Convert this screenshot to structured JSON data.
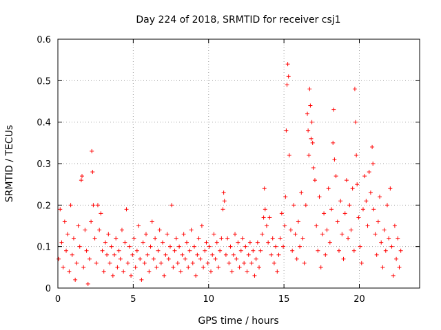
{
  "chart_data": {
    "type": "scatter",
    "title": "Day 224 of 2018, SRMTID for receiver csj1",
    "xlabel": "GPS time / hours",
    "ylabel": "SRMTID / TECUs",
    "xlim": [
      0,
      24
    ],
    "ylim": [
      0,
      0.6
    ],
    "x_ticks": [
      0,
      5,
      10,
      15,
      20
    ],
    "y_ticks": [
      0,
      0.1,
      0.2,
      0.3,
      0.4,
      0.5,
      0.6
    ],
    "x_tick_labels": [
      "0",
      "5",
      "10",
      "15",
      "20"
    ],
    "y_tick_labels": [
      "0",
      "0.1",
      "0.2",
      "0.3",
      "0.4",
      "0.5",
      "0.6"
    ],
    "grid": true,
    "marker": "+",
    "series_color": "#ff0000",
    "series": [
      {
        "name": "SRMTID",
        "points": [
          [
            0.05,
            0.07
          ],
          [
            0.15,
            0.19
          ],
          [
            0.25,
            0.11
          ],
          [
            0.35,
            0.05
          ],
          [
            0.45,
            0.16
          ],
          [
            0.55,
            0.09
          ],
          [
            0.65,
            0.13
          ],
          [
            0.75,
            0.04
          ],
          [
            0.85,
            0.2
          ],
          [
            0.95,
            0.08
          ],
          [
            1.05,
            0.12
          ],
          [
            1.15,
            0.02
          ],
          [
            1.25,
            0.06
          ],
          [
            1.35,
            0.15
          ],
          [
            1.45,
            0.1
          ],
          [
            1.55,
            0.26
          ],
          [
            1.6,
            0.27
          ],
          [
            1.7,
            0.05
          ],
          [
            1.8,
            0.14
          ],
          [
            1.9,
            0.09
          ],
          [
            2.0,
            0.01
          ],
          [
            2.1,
            0.07
          ],
          [
            2.2,
            0.16
          ],
          [
            2.25,
            0.33
          ],
          [
            2.3,
            0.28
          ],
          [
            2.35,
            0.2
          ],
          [
            2.45,
            0.12
          ],
          [
            2.55,
            0.06
          ],
          [
            2.65,
            0.2
          ],
          [
            2.75,
            0.14
          ],
          [
            2.85,
            0.18
          ],
          [
            2.95,
            0.09
          ],
          [
            3.05,
            0.04
          ],
          [
            3.15,
            0.11
          ],
          [
            3.25,
            0.08
          ],
          [
            3.35,
            0.13
          ],
          [
            3.45,
            0.06
          ],
          [
            3.55,
            0.1
          ],
          [
            3.65,
            0.03
          ],
          [
            3.75,
            0.08
          ],
          [
            3.85,
            0.12
          ],
          [
            3.95,
            0.05
          ],
          [
            4.05,
            0.09
          ],
          [
            4.15,
            0.07
          ],
          [
            4.25,
            0.14
          ],
          [
            4.35,
            0.04
          ],
          [
            4.45,
            0.11
          ],
          [
            4.55,
            0.19
          ],
          [
            4.65,
            0.06
          ],
          [
            4.75,
            0.1
          ],
          [
            4.85,
            0.03
          ],
          [
            4.95,
            0.08
          ],
          [
            5.05,
            0.12
          ],
          [
            5.15,
            0.05
          ],
          [
            5.25,
            0.09
          ],
          [
            5.35,
            0.15
          ],
          [
            5.45,
            0.07
          ],
          [
            5.55,
            0.02
          ],
          [
            5.65,
            0.11
          ],
          [
            5.75,
            0.06
          ],
          [
            5.85,
            0.13
          ],
          [
            5.95,
            0.08
          ],
          [
            6.05,
            0.04
          ],
          [
            6.15,
            0.1
          ],
          [
            6.25,
            0.16
          ],
          [
            6.35,
            0.07
          ],
          [
            6.45,
            0.12
          ],
          [
            6.55,
            0.05
          ],
          [
            6.65,
            0.09
          ],
          [
            6.75,
            0.14
          ],
          [
            6.85,
            0.06
          ],
          [
            6.95,
            0.11
          ],
          [
            7.05,
            0.03
          ],
          [
            7.15,
            0.08
          ],
          [
            7.25,
            0.13
          ],
          [
            7.35,
            0.07
          ],
          [
            7.45,
            0.1
          ],
          [
            7.55,
            0.2
          ],
          [
            7.65,
            0.05
          ],
          [
            7.75,
            0.09
          ],
          [
            7.85,
            0.12
          ],
          [
            7.95,
            0.06
          ],
          [
            8.05,
            0.1
          ],
          [
            8.15,
            0.04
          ],
          [
            8.25,
            0.08
          ],
          [
            8.35,
            0.13
          ],
          [
            8.45,
            0.07
          ],
          [
            8.55,
            0.11
          ],
          [
            8.65,
            0.05
          ],
          [
            8.75,
            0.09
          ],
          [
            8.85,
            0.14
          ],
          [
            8.95,
            0.06
          ],
          [
            9.05,
            0.1
          ],
          [
            9.15,
            0.03
          ],
          [
            9.25,
            0.08
          ],
          [
            9.35,
            0.12
          ],
          [
            9.45,
            0.07
          ],
          [
            9.55,
            0.15
          ],
          [
            9.65,
            0.05
          ],
          [
            9.75,
            0.09
          ],
          [
            9.85,
            0.11
          ],
          [
            9.95,
            0.06
          ],
          [
            10.05,
            0.1
          ],
          [
            10.15,
            0.04
          ],
          [
            10.25,
            0.08
          ],
          [
            10.35,
            0.13
          ],
          [
            10.45,
            0.07
          ],
          [
            10.55,
            0.11
          ],
          [
            10.65,
            0.05
          ],
          [
            10.75,
            0.09
          ],
          [
            10.85,
            0.12
          ],
          [
            10.95,
            0.19
          ],
          [
            11.0,
            0.23
          ],
          [
            11.05,
            0.21
          ],
          [
            11.15,
            0.08
          ],
          [
            11.25,
            0.12
          ],
          [
            11.35,
            0.06
          ],
          [
            11.45,
            0.1
          ],
          [
            11.55,
            0.04
          ],
          [
            11.65,
            0.08
          ],
          [
            11.75,
            0.13
          ],
          [
            11.85,
            0.07
          ],
          [
            11.95,
            0.11
          ],
          [
            12.05,
            0.05
          ],
          [
            12.15,
            0.09
          ],
          [
            12.25,
            0.12
          ],
          [
            12.35,
            0.06
          ],
          [
            12.45,
            0.1
          ],
          [
            12.55,
            0.04
          ],
          [
            12.65,
            0.08
          ],
          [
            12.75,
            0.11
          ],
          [
            12.85,
            0.06
          ],
          [
            12.95,
            0.09
          ],
          [
            13.05,
            0.03
          ],
          [
            13.15,
            0.07
          ],
          [
            13.25,
            0.11
          ],
          [
            13.35,
            0.05
          ],
          [
            13.45,
            0.09
          ],
          [
            13.55,
            0.13
          ],
          [
            13.65,
            0.17
          ],
          [
            13.7,
            0.24
          ],
          [
            13.75,
            0.19
          ],
          [
            13.85,
            0.15
          ],
          [
            13.95,
            0.11
          ],
          [
            14.05,
            0.17
          ],
          [
            14.15,
            0.08
          ],
          [
            14.25,
            0.12
          ],
          [
            14.35,
            0.06
          ],
          [
            14.45,
            0.1
          ],
          [
            14.55,
            0.04
          ],
          [
            14.65,
            0.08
          ],
          [
            14.75,
            0.12
          ],
          [
            14.85,
            0.18
          ],
          [
            14.95,
            0.1
          ],
          [
            15.05,
            0.15
          ],
          [
            15.1,
            0.22
          ],
          [
            15.15,
            0.38
          ],
          [
            15.2,
            0.49
          ],
          [
            15.25,
            0.54
          ],
          [
            15.3,
            0.51
          ],
          [
            15.35,
            0.32
          ],
          [
            15.45,
            0.14
          ],
          [
            15.55,
            0.09
          ],
          [
            15.65,
            0.2
          ],
          [
            15.75,
            0.13
          ],
          [
            15.85,
            0.07
          ],
          [
            15.95,
            0.16
          ],
          [
            16.05,
            0.1
          ],
          [
            16.15,
            0.23
          ],
          [
            16.25,
            0.12
          ],
          [
            16.35,
            0.06
          ],
          [
            16.45,
            0.2
          ],
          [
            16.55,
            0.42
          ],
          [
            16.6,
            0.38
          ],
          [
            16.65,
            0.32
          ],
          [
            16.7,
            0.48
          ],
          [
            16.75,
            0.44
          ],
          [
            16.8,
            0.36
          ],
          [
            16.85,
            0.4
          ],
          [
            16.9,
            0.35
          ],
          [
            16.95,
            0.29
          ],
          [
            17.05,
            0.26
          ],
          [
            17.15,
            0.15
          ],
          [
            17.25,
            0.09
          ],
          [
            17.35,
            0.22
          ],
          [
            17.45,
            0.05
          ],
          [
            17.55,
            0.13
          ],
          [
            17.65,
            0.18
          ],
          [
            17.75,
            0.08
          ],
          [
            17.85,
            0.14
          ],
          [
            17.95,
            0.24
          ],
          [
            18.05,
            0.11
          ],
          [
            18.15,
            0.19
          ],
          [
            18.25,
            0.35
          ],
          [
            18.3,
            0.43
          ],
          [
            18.35,
            0.31
          ],
          [
            18.45,
            0.27
          ],
          [
            18.55,
            0.16
          ],
          [
            18.65,
            0.09
          ],
          [
            18.75,
            0.21
          ],
          [
            18.85,
            0.13
          ],
          [
            18.95,
            0.07
          ],
          [
            19.05,
            0.18
          ],
          [
            19.15,
            0.26
          ],
          [
            19.25,
            0.12
          ],
          [
            19.35,
            0.2
          ],
          [
            19.45,
            0.14
          ],
          [
            19.55,
            0.24
          ],
          [
            19.65,
            0.09
          ],
          [
            19.7,
            0.48
          ],
          [
            19.75,
            0.4
          ],
          [
            19.8,
            0.32
          ],
          [
            19.85,
            0.25
          ],
          [
            19.95,
            0.17
          ],
          [
            20.05,
            0.1
          ],
          [
            20.15,
            0.06
          ],
          [
            20.25,
            0.19
          ],
          [
            20.35,
            0.27
          ],
          [
            20.45,
            0.21
          ],
          [
            20.55,
            0.15
          ],
          [
            20.65,
            0.28
          ],
          [
            20.75,
            0.23
          ],
          [
            20.85,
            0.34
          ],
          [
            20.9,
            0.3
          ],
          [
            20.95,
            0.19
          ],
          [
            21.05,
            0.13
          ],
          [
            21.15,
            0.08
          ],
          [
            21.25,
            0.16
          ],
          [
            21.35,
            0.22
          ],
          [
            21.45,
            0.11
          ],
          [
            21.55,
            0.05
          ],
          [
            21.65,
            0.14
          ],
          [
            21.75,
            0.09
          ],
          [
            21.85,
            0.2
          ],
          [
            21.95,
            0.12
          ],
          [
            22.05,
            0.24
          ],
          [
            22.15,
            0.1
          ],
          [
            22.25,
            0.03
          ],
          [
            22.35,
            0.15
          ],
          [
            22.45,
            0.07
          ],
          [
            22.55,
            0.12
          ],
          [
            22.65,
            0.05
          ],
          [
            22.75,
            0.09
          ]
        ]
      }
    ]
  }
}
